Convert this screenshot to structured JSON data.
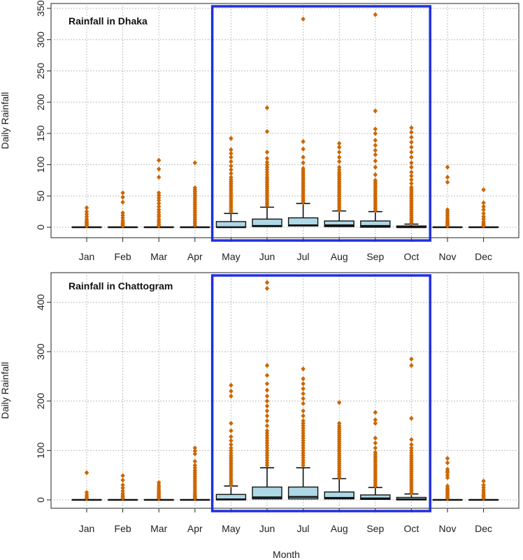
{
  "chart_data": [
    {
      "type": "box",
      "title": "Rainfall in Dhaka",
      "ylabel": "Daily Rainfall",
      "xlabel": "",
      "ylim": [
        0,
        350
      ],
      "yticks": [
        0,
        50,
        100,
        150,
        200,
        250,
        300,
        350
      ],
      "grid": true,
      "box_color": "#add8e6",
      "outlier_color": "#cc6600",
      "highlight": {
        "from": "May",
        "to": "Oct",
        "color": "#1f2fe0"
      },
      "categories": [
        "Jan",
        "Feb",
        "Mar",
        "Apr",
        "May",
        "Jun",
        "Jul",
        "Aug",
        "Sep",
        "Oct",
        "Nov",
        "Dec"
      ],
      "boxes": [
        {
          "min": 0,
          "q1": 0,
          "median": 0,
          "q3": 0,
          "max": 0
        },
        {
          "min": 0,
          "q1": 0,
          "median": 0,
          "q3": 0,
          "max": 0
        },
        {
          "min": 0,
          "q1": 0,
          "median": 0,
          "q3": 0,
          "max": 0
        },
        {
          "min": 0,
          "q1": 0,
          "median": 0,
          "q3": 0,
          "max": 0
        },
        {
          "min": 0,
          "q1": 0,
          "median": 0,
          "q3": 9,
          "max": 22
        },
        {
          "min": 0,
          "q1": 1,
          "median": 2,
          "q3": 13,
          "max": 32
        },
        {
          "min": 0,
          "q1": 2,
          "median": 3,
          "q3": 15,
          "max": 38
        },
        {
          "min": 0,
          "q1": 1,
          "median": 3,
          "q3": 10,
          "max": 26
        },
        {
          "min": 0,
          "q1": 0,
          "median": 2,
          "q3": 10,
          "max": 25
        },
        {
          "min": 0,
          "q1": 0,
          "median": 0,
          "q3": 2,
          "max": 5
        },
        {
          "min": 0,
          "q1": 0,
          "median": 0,
          "q3": 0,
          "max": 0
        },
        {
          "min": 0,
          "q1": 0,
          "median": 0,
          "q3": 0,
          "max": 0
        }
      ],
      "outliers": [
        [
          2,
          4,
          6,
          8,
          10,
          13,
          17,
          21,
          25,
          31
        ],
        [
          2,
          4,
          6,
          8,
          11,
          15,
          19,
          23,
          40,
          48,
          55
        ],
        [
          2,
          4,
          7,
          10,
          13,
          17,
          20,
          24,
          28,
          33,
          38,
          43,
          47,
          51,
          55,
          80,
          93,
          107
        ],
        [
          3,
          6,
          9,
          12,
          15,
          18,
          21,
          24,
          27,
          30,
          33,
          36,
          39,
          42,
          45,
          48,
          51,
          54,
          57,
          60,
          63,
          103
        ],
        [
          25,
          28,
          31,
          34,
          37,
          40,
          43,
          46,
          49,
          52,
          55,
          58,
          61,
          64,
          67,
          70,
          73,
          76,
          80,
          86,
          92,
          98,
          105,
          112,
          118,
          124,
          142
        ],
        [
          35,
          38,
          41,
          44,
          47,
          50,
          53,
          56,
          59,
          62,
          65,
          68,
          71,
          74,
          77,
          80,
          84,
          88,
          92,
          96,
          100,
          104,
          110,
          120,
          153,
          191
        ],
        [
          40,
          43,
          46,
          49,
          52,
          55,
          58,
          61,
          64,
          67,
          70,
          73,
          76,
          79,
          82,
          85,
          88,
          91,
          94,
          103,
          112,
          125,
          137,
          333
        ],
        [
          28,
          31,
          34,
          37,
          40,
          43,
          46,
          49,
          52,
          55,
          58,
          61,
          64,
          67,
          70,
          73,
          76,
          79,
          82,
          85,
          88,
          92,
          96,
          105,
          112,
          120,
          128,
          134
        ],
        [
          27,
          30,
          33,
          36,
          39,
          42,
          45,
          48,
          51,
          54,
          57,
          60,
          63,
          66,
          69,
          72,
          75,
          84,
          96,
          106,
          116,
          123,
          131,
          139,
          150,
          157,
          186,
          340
        ],
        [
          7,
          10,
          13,
          16,
          19,
          22,
          25,
          28,
          31,
          34,
          37,
          40,
          43,
          46,
          49,
          52,
          55,
          58,
          61,
          64,
          70,
          76,
          82,
          88,
          96,
          103,
          112,
          120,
          128,
          136,
          144,
          152,
          159
        ],
        [
          2,
          4,
          6,
          8,
          10,
          13,
          16,
          19,
          22,
          25,
          28,
          72,
          80,
          96
        ],
        [
          2,
          4,
          6,
          9,
          13,
          17,
          22,
          28,
          33,
          39,
          60
        ]
      ]
    },
    {
      "type": "box",
      "title": "Rainfall in Chattogram",
      "ylabel": "Daily Rainfall",
      "xlabel": "Month",
      "ylim": [
        0,
        450
      ],
      "yticks": [
        0,
        100,
        200,
        300,
        400
      ],
      "grid": true,
      "box_color": "#add8e6",
      "outlier_color": "#cc6600",
      "highlight": {
        "from": "May",
        "to": "Oct",
        "color": "#1f2fe0"
      },
      "categories": [
        "Jan",
        "Feb",
        "Mar",
        "Apr",
        "May",
        "Jun",
        "Jul",
        "Aug",
        "Sep",
        "Oct",
        "Nov",
        "Dec"
      ],
      "boxes": [
        {
          "min": 0,
          "q1": 0,
          "median": 0,
          "q3": 0,
          "max": 0
        },
        {
          "min": 0,
          "q1": 0,
          "median": 0,
          "q3": 0,
          "max": 0
        },
        {
          "min": 0,
          "q1": 0,
          "median": 0,
          "q3": 0,
          "max": 0
        },
        {
          "min": 0,
          "q1": 0,
          "median": 0,
          "q3": 0,
          "max": 0
        },
        {
          "min": 0,
          "q1": 0,
          "median": 1,
          "q3": 11,
          "max": 28
        },
        {
          "min": 0,
          "q1": 2,
          "median": 5,
          "q3": 26,
          "max": 65
        },
        {
          "min": 0,
          "q1": 2,
          "median": 6,
          "q3": 26,
          "max": 65
        },
        {
          "min": 0,
          "q1": 2,
          "median": 4,
          "q3": 16,
          "max": 43
        },
        {
          "min": 0,
          "q1": 1,
          "median": 3,
          "q3": 10,
          "max": 25
        },
        {
          "min": 0,
          "q1": 0,
          "median": 1,
          "q3": 5,
          "max": 12
        },
        {
          "min": 0,
          "q1": 0,
          "median": 0,
          "q3": 0,
          "max": 0
        },
        {
          "min": 0,
          "q1": 0,
          "median": 0,
          "q3": 0,
          "max": 0
        }
      ],
      "outliers": [
        [
          3,
          6,
          10,
          15,
          55
        ],
        [
          3,
          6,
          9,
          13,
          18,
          24,
          30,
          40,
          49
        ],
        [
          3,
          6,
          9,
          12,
          15,
          18,
          22,
          26,
          30,
          35
        ],
        [
          3,
          6,
          9,
          12,
          16,
          20,
          24,
          28,
          32,
          36,
          40,
          44,
          48,
          52,
          56,
          60,
          65,
          70,
          78,
          93,
          99,
          105
        ],
        [
          30,
          34,
          38,
          42,
          46,
          50,
          54,
          58,
          62,
          66,
          70,
          74,
          78,
          82,
          86,
          90,
          95,
          100,
          105,
          112,
          120,
          128,
          140,
          155,
          210,
          220,
          232
        ],
        [
          70,
          75,
          80,
          85,
          90,
          95,
          100,
          105,
          110,
          115,
          120,
          125,
          130,
          135,
          140,
          150,
          160,
          170,
          180,
          190,
          200,
          210,
          222,
          235,
          252,
          272,
          428,
          440
        ],
        [
          70,
          75,
          80,
          85,
          90,
          95,
          100,
          105,
          110,
          115,
          120,
          125,
          130,
          135,
          140,
          145,
          150,
          155,
          160,
          170,
          180,
          195,
          205,
          215,
          225,
          235,
          245,
          265
        ],
        [
          46,
          50,
          54,
          58,
          62,
          66,
          70,
          74,
          78,
          82,
          86,
          90,
          94,
          98,
          102,
          106,
          110,
          114,
          118,
          122,
          126,
          130,
          134,
          138,
          142,
          146,
          150,
          155,
          197
        ],
        [
          28,
          32,
          36,
          40,
          44,
          48,
          52,
          56,
          60,
          64,
          68,
          72,
          76,
          80,
          84,
          88,
          92,
          96,
          105,
          115,
          125,
          155,
          162,
          177
        ],
        [
          14,
          18,
          22,
          26,
          30,
          34,
          38,
          42,
          46,
          50,
          54,
          58,
          62,
          66,
          70,
          74,
          78,
          82,
          86,
          90,
          95,
          100,
          105,
          112,
          122,
          165,
          272,
          285
        ],
        [
          3,
          6,
          9,
          12,
          15,
          18,
          21,
          24,
          28,
          45,
          50,
          55,
          58,
          62,
          75,
          84
        ],
        [
          3,
          6,
          9,
          12,
          16,
          20,
          25,
          30,
          38
        ]
      ]
    }
  ]
}
